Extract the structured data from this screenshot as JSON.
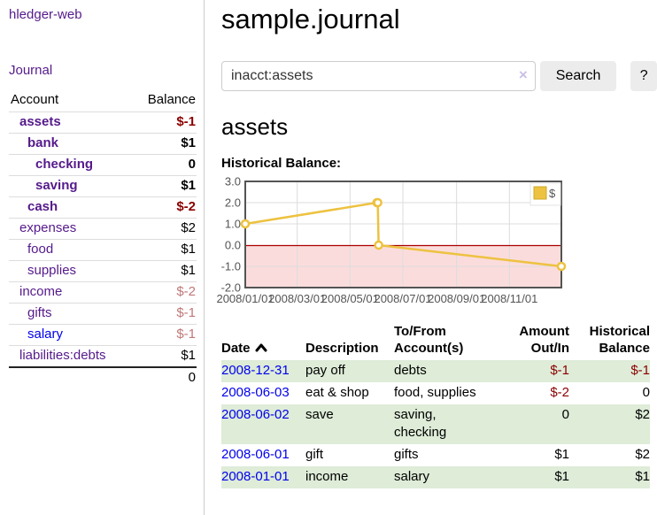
{
  "app": {
    "title": "hledger-web",
    "nav": {
      "journal": "Journal"
    }
  },
  "sidebar": {
    "header": {
      "account": "Account",
      "balance": "Balance"
    },
    "accounts": [
      {
        "name": "assets",
        "balance": "$-1"
      },
      {
        "name": "bank",
        "balance": "$1"
      },
      {
        "name": "checking",
        "balance": "0"
      },
      {
        "name": "saving",
        "balance": "$1"
      },
      {
        "name": "cash",
        "balance": "$-2"
      },
      {
        "name": "expenses",
        "balance": "$2"
      },
      {
        "name": "food",
        "balance": "$1"
      },
      {
        "name": "supplies",
        "balance": "$1"
      },
      {
        "name": "income",
        "balance": "$-2"
      },
      {
        "name": "gifts",
        "balance": "$-1"
      },
      {
        "name": "salary",
        "balance": "$-1"
      },
      {
        "name": "liabilities:debts",
        "balance": "$1"
      }
    ],
    "total": "0"
  },
  "main": {
    "title": "sample.journal",
    "search": {
      "value": "inacct:assets",
      "clear_icon": "×",
      "button": "Search",
      "help_button": "?"
    },
    "account_heading": "assets",
    "chart_heading": "Historical Balance:"
  },
  "chart_data": {
    "type": "line",
    "title": "Historical Balance:",
    "step": true,
    "grid": true,
    "legend_position": "top-right",
    "x_range": [
      "2008-01-01",
      "2008-12-31"
    ],
    "ylim": [
      -2,
      3
    ],
    "yticks": [
      "3.0",
      "2.0",
      "1.0",
      "0.0",
      "-1.0",
      "-2.0"
    ],
    "xticks": [
      "2008/01/01",
      "2008/03/01",
      "2008/05/01",
      "2008/07/01",
      "2008/09/01",
      "2008/11/01"
    ],
    "series": [
      {
        "name": "$",
        "color": "#edc240",
        "points": [
          [
            "2008-01-01",
            1
          ],
          [
            "2008-06-01",
            2
          ],
          [
            "2008-06-02",
            2
          ],
          [
            "2008-06-03",
            0
          ],
          [
            "2008-12-31",
            -1
          ]
        ]
      }
    ],
    "negative_region_color": "#fbdcdc",
    "zero_line_color": "#aa0000"
  },
  "register": {
    "headers": [
      {
        "line1": "Date",
        "line2": "",
        "sort": "ascending"
      },
      {
        "line1": "Description",
        "line2": ""
      },
      {
        "line1": "To/From",
        "line2": "Account(s)"
      },
      {
        "line1": "Amount",
        "line2": "Out/In"
      },
      {
        "line1": "Historical",
        "line2": "Balance"
      }
    ],
    "rows": [
      {
        "date": "2008-12-31",
        "description": "pay off",
        "tofrom": "debts",
        "amount": "$-1",
        "balance": "$-1"
      },
      {
        "date": "2008-06-03",
        "description": "eat & shop",
        "tofrom": "food, supplies",
        "amount": "$-2",
        "balance": "0"
      },
      {
        "date": "2008-06-02",
        "description": "save",
        "tofrom": "saving, checking",
        "amount": "0",
        "balance": "$2"
      },
      {
        "date": "2008-06-01",
        "description": "gift",
        "tofrom": "gifts",
        "amount": "$1",
        "balance": "$2"
      },
      {
        "date": "2008-01-01",
        "description": "income",
        "tofrom": "salary",
        "amount": "$1",
        "balance": "$1"
      }
    ]
  },
  "colors": {
    "link_purple": "#551a8b",
    "link_blue": "#0000ee",
    "negative_strong": "#8b0000",
    "negative_muted": "#c17878",
    "row_stripe_green": "#deecd8",
    "series_gold": "#edc240",
    "button_gray": "#ececec"
  }
}
